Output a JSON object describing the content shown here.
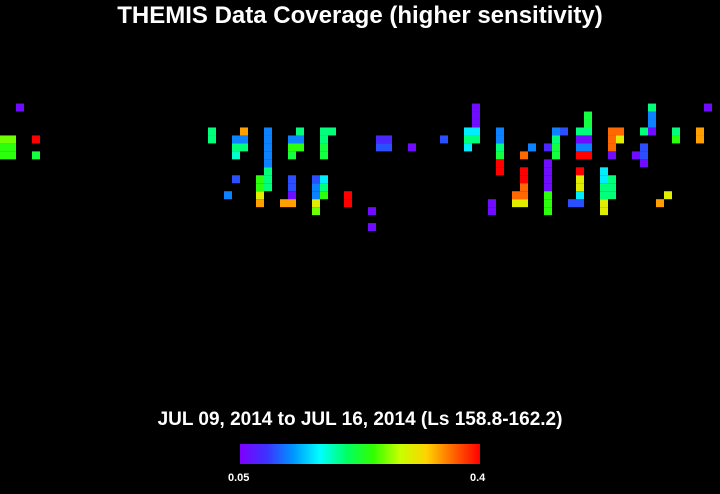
{
  "title": "THEMIS Data Coverage (higher sensitivity)",
  "subtitle": "JUL 09, 2014 to JUL 16, 2014 (Ls 158.8-162.2)",
  "colorbar": {
    "min_label": "0.05",
    "max_label": "0.4",
    "colors": [
      "#7f00ff",
      "#3c32ff",
      "#0096ff",
      "#00ffff",
      "#00ff64",
      "#32ff00",
      "#c8ff00",
      "#ffd200",
      "#ff6400",
      "#ff0000"
    ]
  },
  "chart_data": {
    "type": "heatmap",
    "title": "THEMIS Data Coverage (higher sensitivity)",
    "subtitle": "JUL 09, 2014 to JUL 16, 2014 (Ls 158.8-162.2)",
    "value_range": [
      0.05,
      0.4
    ],
    "cell_grid": {
      "columns": 90,
      "rows": 62
    },
    "cells": [
      [
        2,
        13,
        0.06
      ],
      [
        0,
        17,
        0.26
      ],
      [
        1,
        17,
        0.26
      ],
      [
        0,
        18,
        0.24
      ],
      [
        1,
        18,
        0.24
      ],
      [
        0,
        19,
        0.24
      ],
      [
        1,
        19,
        0.24
      ],
      [
        4,
        17,
        0.4
      ],
      [
        4,
        19,
        0.22
      ],
      [
        26,
        16,
        0.2
      ],
      [
        26,
        17,
        0.2
      ],
      [
        30,
        16,
        0.34
      ],
      [
        29,
        17,
        0.12
      ],
      [
        30,
        17,
        0.12
      ],
      [
        29,
        18,
        0.2
      ],
      [
        30,
        18,
        0.2
      ],
      [
        29,
        19,
        0.18
      ],
      [
        33,
        16,
        0.12
      ],
      [
        33,
        17,
        0.12
      ],
      [
        33,
        18,
        0.12
      ],
      [
        33,
        19,
        0.12
      ],
      [
        37,
        16,
        0.2
      ],
      [
        36,
        17,
        0.12
      ],
      [
        37,
        17,
        0.12
      ],
      [
        36,
        18,
        0.24
      ],
      [
        37,
        18,
        0.24
      ],
      [
        36,
        19,
        0.22
      ],
      [
        41,
        16,
        0.2
      ],
      [
        40,
        16,
        0.2
      ],
      [
        40,
        17,
        0.2
      ],
      [
        40,
        18,
        0.22
      ],
      [
        40,
        19,
        0.22
      ],
      [
        47,
        17,
        0.08
      ],
      [
        48,
        17,
        0.08
      ],
      [
        47,
        18,
        0.1
      ],
      [
        48,
        18,
        0.1
      ],
      [
        51,
        18,
        0.06
      ],
      [
        55,
        17,
        0.1
      ],
      [
        33,
        20,
        0.12
      ],
      [
        33,
        21,
        0.2
      ],
      [
        29,
        22,
        0.1
      ],
      [
        33,
        22,
        0.2
      ],
      [
        33,
        23,
        0.2
      ],
      [
        28,
        24,
        0.12
      ],
      [
        32,
        22,
        0.24
      ],
      [
        32,
        23,
        0.24
      ],
      [
        32,
        24,
        0.3
      ],
      [
        32,
        25,
        0.34
      ],
      [
        36,
        22,
        0.1
      ],
      [
        36,
        23,
        0.1
      ],
      [
        36,
        24,
        0.06
      ],
      [
        35,
        25,
        0.34
      ],
      [
        36,
        25,
        0.34
      ],
      [
        39,
        22,
        0.1
      ],
      [
        40,
        22,
        0.16
      ],
      [
        39,
        23,
        0.12
      ],
      [
        40,
        23,
        0.2
      ],
      [
        39,
        24,
        0.12
      ],
      [
        40,
        24,
        0.24
      ],
      [
        39,
        25,
        0.3
      ],
      [
        39,
        26,
        0.26
      ],
      [
        43,
        24,
        0.4
      ],
      [
        43,
        25,
        0.4
      ],
      [
        46,
        26,
        0.06
      ],
      [
        46,
        28,
        0.06
      ],
      [
        59,
        13,
        0.06
      ],
      [
        59,
        14,
        0.06
      ],
      [
        59,
        15,
        0.06
      ],
      [
        58,
        16,
        0.16
      ],
      [
        59,
        16,
        0.16
      ],
      [
        58,
        17,
        0.2
      ],
      [
        59,
        17,
        0.2
      ],
      [
        58,
        18,
        0.16
      ],
      [
        62,
        16,
        0.12
      ],
      [
        62,
        17,
        0.12
      ],
      [
        62,
        18,
        0.2
      ],
      [
        62,
        19,
        0.22
      ],
      [
        62,
        20,
        0.4
      ],
      [
        62,
        21,
        0.4
      ],
      [
        65,
        19,
        0.36
      ],
      [
        66,
        18,
        0.12
      ],
      [
        69,
        16,
        0.12
      ],
      [
        70,
        16,
        0.1
      ],
      [
        69,
        17,
        0.2
      ],
      [
        69,
        18,
        0.22
      ],
      [
        68,
        18,
        0.08
      ],
      [
        69,
        19,
        0.22
      ],
      [
        68,
        20,
        0.06
      ],
      [
        68,
        21,
        0.06
      ],
      [
        73,
        14,
        0.22
      ],
      [
        73,
        15,
        0.22
      ],
      [
        73,
        16,
        0.2
      ],
      [
        72,
        16,
        0.2
      ],
      [
        72,
        17,
        0.06
      ],
      [
        73,
        17,
        0.06
      ],
      [
        72,
        18,
        0.12
      ],
      [
        73,
        18,
        0.12
      ],
      [
        72,
        19,
        0.4
      ],
      [
        73,
        19,
        0.4
      ],
      [
        76,
        16,
        0.36
      ],
      [
        77,
        16,
        0.36
      ],
      [
        77,
        17,
        0.3
      ],
      [
        76,
        17,
        0.36
      ],
      [
        76,
        18,
        0.36
      ],
      [
        76,
        19,
        0.06
      ],
      [
        80,
        16,
        0.2
      ],
      [
        81,
        13,
        0.2
      ],
      [
        81,
        14,
        0.12
      ],
      [
        81,
        15,
        0.12
      ],
      [
        81,
        16,
        0.06
      ],
      [
        84,
        16,
        0.2
      ],
      [
        84,
        17,
        0.24
      ],
      [
        87,
        16,
        0.34
      ],
      [
        87,
        17,
        0.34
      ],
      [
        88,
        13,
        0.06
      ],
      [
        79,
        19,
        0.06
      ],
      [
        80,
        19,
        0.1
      ],
      [
        80,
        18,
        0.1
      ],
      [
        80,
        20,
        0.06
      ],
      [
        65,
        21,
        0.4
      ],
      [
        65,
        22,
        0.4
      ],
      [
        65,
        23,
        0.36
      ],
      [
        64,
        24,
        0.36
      ],
      [
        65,
        24,
        0.36
      ],
      [
        64,
        25,
        0.3
      ],
      [
        65,
        25,
        0.3
      ],
      [
        68,
        22,
        0.06
      ],
      [
        68,
        23,
        0.06
      ],
      [
        68,
        24,
        0.24
      ],
      [
        68,
        25,
        0.24
      ],
      [
        68,
        26,
        0.24
      ],
      [
        72,
        21,
        0.4
      ],
      [
        72,
        22,
        0.3
      ],
      [
        72,
        23,
        0.3
      ],
      [
        72,
        24,
        0.16
      ],
      [
        71,
        25,
        0.1
      ],
      [
        72,
        25,
        0.1
      ],
      [
        75,
        21,
        0.16
      ],
      [
        75,
        22,
        0.16
      ],
      [
        76,
        22,
        0.2
      ],
      [
        75,
        23,
        0.2
      ],
      [
        76,
        23,
        0.2
      ],
      [
        75,
        24,
        0.2
      ],
      [
        76,
        24,
        0.2
      ],
      [
        75,
        25,
        0.3
      ],
      [
        75,
        26,
        0.3
      ],
      [
        61,
        25,
        0.06
      ],
      [
        61,
        26,
        0.06
      ],
      [
        83,
        24,
        0.3
      ],
      [
        82,
        25,
        0.34
      ]
    ]
  }
}
